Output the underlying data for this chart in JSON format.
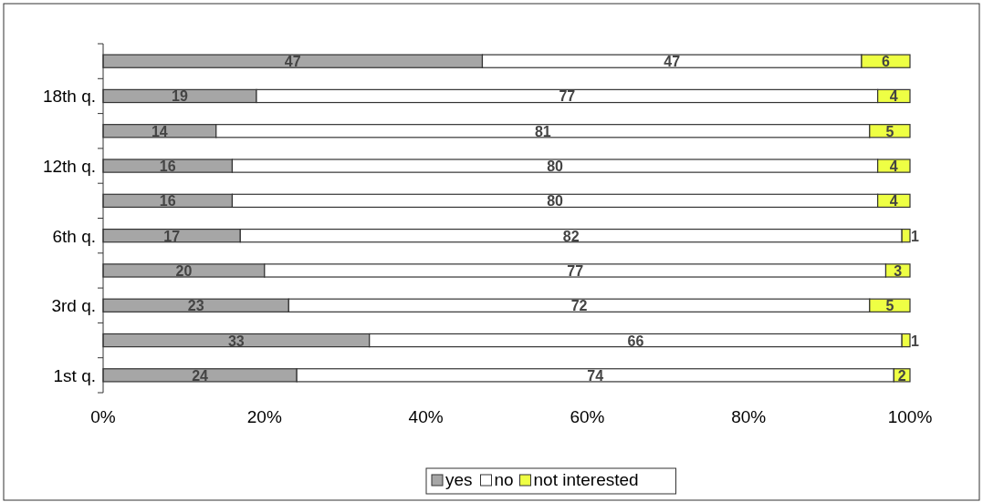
{
  "chart_data": {
    "type": "bar",
    "orientation": "horizontal",
    "stacked": true,
    "categories": [
      null,
      "18th q.",
      null,
      "12th q.",
      null,
      "6th q.",
      null,
      "3rd q.",
      null,
      "1st q."
    ],
    "series": [
      {
        "name": "yes",
        "color": "#a6a6a6",
        "values": [
          47,
          19,
          14,
          16,
          16,
          17,
          20,
          23,
          33,
          24
        ]
      },
      {
        "name": "no",
        "color": "#ffffff",
        "values": [
          47,
          77,
          81,
          80,
          80,
          82,
          77,
          72,
          66,
          74
        ]
      },
      {
        "name": "not interested",
        "color": "#eeff44",
        "values": [
          6,
          4,
          5,
          4,
          4,
          1,
          3,
          5,
          1,
          2
        ]
      }
    ],
    "xlim": [
      0,
      100
    ],
    "xticks": [
      {
        "value": 0,
        "label": "0%"
      },
      {
        "value": 20,
        "label": "20%"
      },
      {
        "value": 40,
        "label": "40%"
      },
      {
        "value": 60,
        "label": "60%"
      },
      {
        "value": 80,
        "label": "80%"
      },
      {
        "value": 100,
        "label": "100%"
      }
    ],
    "data_labels": true,
    "legend": "bottom",
    "grid": false
  }
}
